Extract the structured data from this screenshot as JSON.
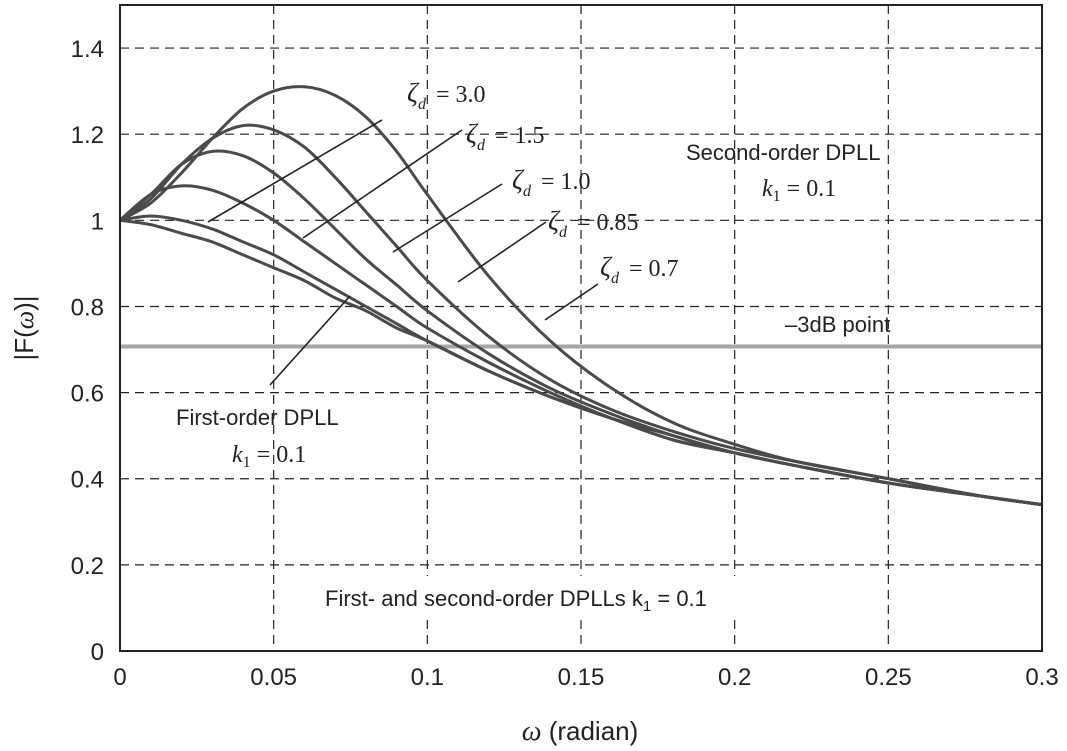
{
  "chart_data": {
    "type": "line",
    "title": "",
    "xlabel": "ω (radian)",
    "ylabel": "|F(ω)|",
    "xlim": [
      0,
      0.3
    ],
    "ylim": [
      0,
      1.5
    ],
    "grid": true,
    "x_ticks": [
      "0",
      "0.05",
      "0.1",
      "0.15",
      "0.2",
      "0.25",
      "0.3"
    ],
    "y_ticks": [
      "0",
      "0.2",
      "0.4",
      "0.6",
      "0.8",
      "1",
      "1.2",
      "1.4"
    ],
    "reference_line": {
      "value": 0.707,
      "label": "–3dB point",
      "color": "#a6a6a6"
    },
    "series": [
      {
        "name": "ζd = 3.0",
        "x": [
          0,
          0.01,
          0.02,
          0.03,
          0.04,
          0.05,
          0.06,
          0.07,
          0.08,
          0.09,
          0.1,
          0.12,
          0.14,
          0.16,
          0.18,
          0.2,
          0.22,
          0.25,
          0.28,
          0.3
        ],
        "y": [
          1.0,
          1.04,
          1.11,
          1.19,
          1.26,
          1.3,
          1.31,
          1.29,
          1.24,
          1.16,
          1.06,
          0.87,
          0.72,
          0.61,
          0.53,
          0.48,
          0.44,
          0.4,
          0.36,
          0.34
        ]
      },
      {
        "name": "ζd = 1.5",
        "x": [
          0,
          0.01,
          0.02,
          0.03,
          0.04,
          0.05,
          0.06,
          0.07,
          0.08,
          0.09,
          0.1,
          0.12,
          0.14,
          0.16,
          0.18,
          0.2,
          0.22,
          0.25,
          0.28,
          0.3
        ],
        "y": [
          1.0,
          1.05,
          1.13,
          1.19,
          1.22,
          1.21,
          1.17,
          1.1,
          1.02,
          0.94,
          0.86,
          0.73,
          0.63,
          0.56,
          0.51,
          0.47,
          0.44,
          0.4,
          0.36,
          0.34
        ]
      },
      {
        "name": "ζd = 1.0",
        "x": [
          0,
          0.01,
          0.02,
          0.03,
          0.04,
          0.05,
          0.06,
          0.07,
          0.08,
          0.09,
          0.1,
          0.12,
          0.14,
          0.16,
          0.18,
          0.2,
          0.22,
          0.25,
          0.28,
          0.3
        ],
        "y": [
          1.0,
          1.06,
          1.13,
          1.16,
          1.15,
          1.11,
          1.05,
          0.98,
          0.91,
          0.85,
          0.79,
          0.69,
          0.61,
          0.55,
          0.5,
          0.46,
          0.43,
          0.39,
          0.36,
          0.34
        ]
      },
      {
        "name": "ζd = 0.85",
        "x": [
          0,
          0.01,
          0.02,
          0.03,
          0.04,
          0.05,
          0.06,
          0.07,
          0.08,
          0.09,
          0.1,
          0.12,
          0.14,
          0.16,
          0.18,
          0.2,
          0.22,
          0.25,
          0.28,
          0.3
        ],
        "y": [
          1.0,
          1.06,
          1.08,
          1.07,
          1.04,
          1.0,
          0.95,
          0.9,
          0.85,
          0.8,
          0.75,
          0.67,
          0.6,
          0.54,
          0.49,
          0.46,
          0.43,
          0.39,
          0.36,
          0.34
        ]
      },
      {
        "name": "ζd = 0.7",
        "x": [
          0,
          0.01,
          0.02,
          0.03,
          0.04,
          0.05,
          0.06,
          0.07,
          0.08,
          0.09,
          0.1,
          0.12,
          0.14,
          0.16,
          0.18,
          0.2,
          0.22,
          0.25,
          0.28,
          0.3
        ],
        "y": [
          1.0,
          1.01,
          1.0,
          0.98,
          0.95,
          0.92,
          0.88,
          0.84,
          0.8,
          0.76,
          0.72,
          0.65,
          0.59,
          0.54,
          0.49,
          0.46,
          0.43,
          0.39,
          0.36,
          0.34
        ]
      },
      {
        "name": "First-order DPLL",
        "x": [
          0,
          0.01,
          0.02,
          0.03,
          0.04,
          0.05,
          0.06,
          0.07,
          0.08,
          0.09,
          0.1,
          0.12,
          0.14,
          0.16,
          0.18,
          0.2,
          0.22,
          0.25,
          0.28,
          0.3
        ],
        "y": [
          1.0,
          0.99,
          0.97,
          0.95,
          0.92,
          0.89,
          0.86,
          0.82,
          0.79,
          0.75,
          0.72,
          0.65,
          0.59,
          0.54,
          0.5,
          0.46,
          0.43,
          0.39,
          0.36,
          0.34
        ]
      }
    ],
    "annotations": {
      "zeta_labels": [
        {
          "symbol": "ζ",
          "sub": "d",
          "value": "= 3.0"
        },
        {
          "symbol": "ζ",
          "sub": "d",
          "value": "= 1.5"
        },
        {
          "symbol": "ζ",
          "sub": "d",
          "value": "= 1.0"
        },
        {
          "symbol": "ζ",
          "sub": "d",
          "value": "= 0.85"
        },
        {
          "symbol": "ζ",
          "sub": "d",
          "value": "= 0.7"
        }
      ],
      "second_order_title": "Second-order DPLL",
      "second_order_k": {
        "k": "k",
        "sub": "1",
        "value": "= 0.1"
      },
      "first_order_title": "First-order DPLL",
      "first_order_k": {
        "k": "k",
        "sub": "1",
        "value": "= 0.1"
      },
      "bottom_note": {
        "text": "First- and second-order DPLLs k",
        "sub": "1",
        "value": " = 0.1"
      },
      "xlabel_parts": {
        "symbol": "ω",
        "rest": " (radian)"
      },
      "ylabel_parts": {
        "pre": "|F(",
        "symbol": "ω",
        "post": ")|"
      }
    }
  }
}
